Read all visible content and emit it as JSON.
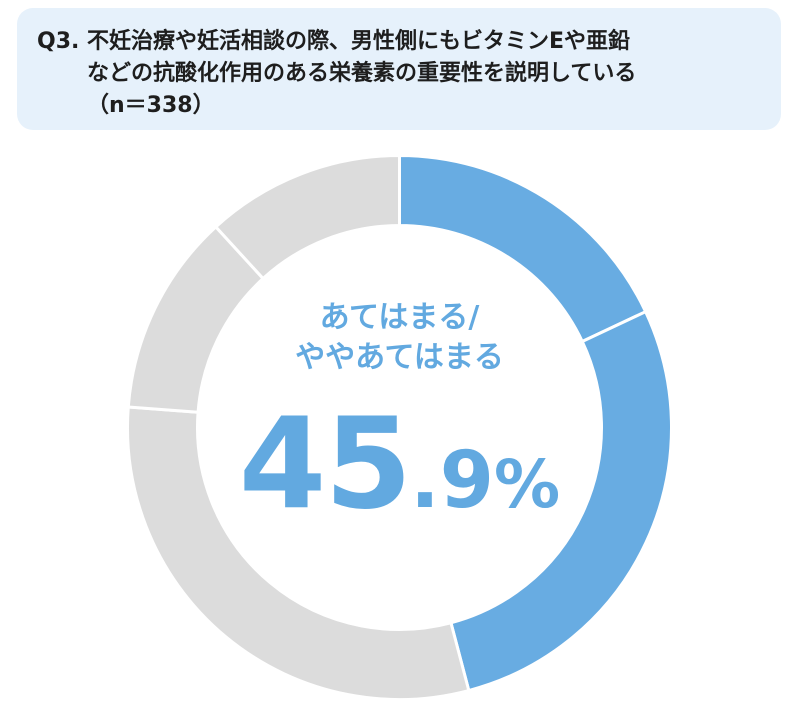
{
  "question": {
    "label": "Q3.",
    "line1": "不妊治療や妊活相談の際、男性側にもビタミンEや亜鉛",
    "line2": "などの抗酸化作用のある栄養素の重要性を説明している",
    "line3": "（n＝338）"
  },
  "center": {
    "label_line1": "あてはまる/",
    "label_line2": "ややあてはまる",
    "value_int": "45",
    "value_dec": ".9",
    "value_pct": "%"
  },
  "colors": {
    "accent": "#62a9e0",
    "segment_blue": "#68ace2",
    "segment_gray": "#dcdcdc",
    "box_bg": "#e6f1fb"
  },
  "chart_data": {
    "type": "pie",
    "title": "",
    "slices": [
      {
        "label": "",
        "value": 18.0,
        "color": "#68ace2"
      },
      {
        "label": "",
        "value": 27.9,
        "color": "#68ace2"
      },
      {
        "label": "",
        "value": 30.3,
        "color": "#dcdcdc"
      },
      {
        "label": "",
        "value": 12.0,
        "color": "#dcdcdc"
      },
      {
        "label": "",
        "value": 11.8,
        "color": "#dcdcdc"
      }
    ],
    "center_value_percent": 45.9
  }
}
